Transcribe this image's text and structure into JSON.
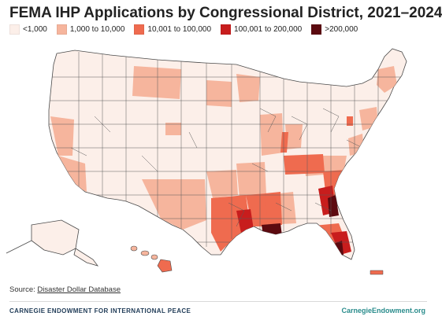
{
  "title": "FEMA IHP Applications by Congressional District, 2021–2024",
  "legend": [
    {
      "label": "<1,000",
      "color": "#fcefe9"
    },
    {
      "label": "1,000 to 10,000",
      "color": "#f6b59d"
    },
    {
      "label": "10,001 to 100,000",
      "color": "#ef6b4f"
    },
    {
      "label": "100,001 to 200,000",
      "color": "#c81d1d"
    },
    {
      "label": ">200,000",
      "color": "#5c0a10"
    }
  ],
  "source_prefix": "Source: ",
  "source_link": "Disaster Dollar Database",
  "footer_org": "CARNEGIE ENDOWMENT FOR INTERNATIONAL PEACE",
  "footer_site": "CarnegieEndowment.org"
}
